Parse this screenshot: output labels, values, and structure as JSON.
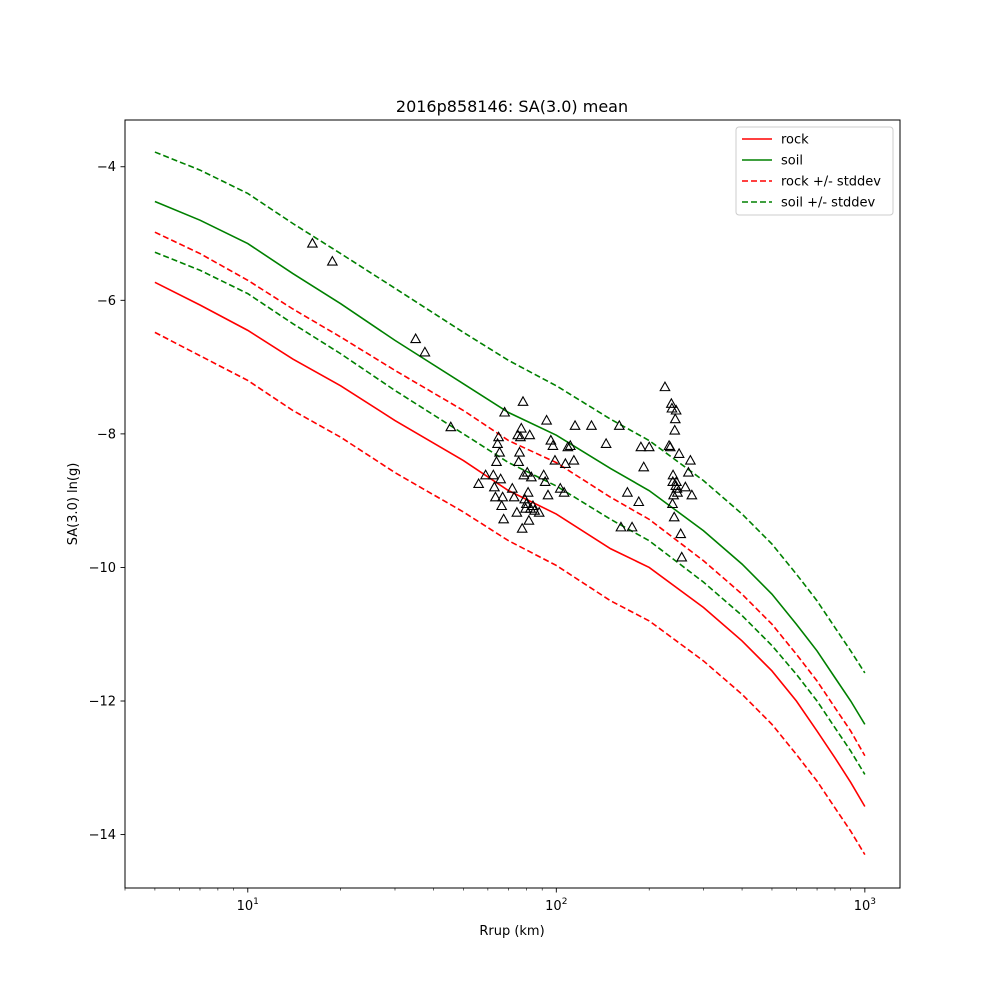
{
  "chart_data": {
    "type": "line",
    "title": "2016p858146: SA(3.0) mean",
    "xlabel": "Rrup (km)",
    "ylabel": "SA(3.0) ln(g)",
    "xscale": "log",
    "xlim": [
      4,
      1300
    ],
    "ylim": [
      -14.8,
      -3.3
    ],
    "x_ticks": [
      {
        "value": 10,
        "base": "10",
        "exp": "1"
      },
      {
        "value": 100,
        "base": "10",
        "exp": "2"
      },
      {
        "value": 1000,
        "base": "10",
        "exp": "3"
      }
    ],
    "y_ticks": [
      -4,
      -6,
      -8,
      -10,
      -12,
      -14
    ],
    "y_tick_labels": [
      "−4",
      "−6",
      "−8",
      "−10",
      "−12",
      "−14"
    ],
    "legend_position": "top-right",
    "x": [
      5,
      7,
      10,
      14,
      20,
      30,
      50,
      70,
      100,
      150,
      200,
      300,
      400,
      500,
      600,
      700,
      800,
      900,
      1000
    ],
    "series": [
      {
        "name": "rock",
        "color": "#ff0000",
        "dash": "solid",
        "values": [
          -5.73,
          -6.07,
          -6.45,
          -6.88,
          -7.28,
          -7.8,
          -8.4,
          -8.85,
          -9.2,
          -9.72,
          -10.0,
          -10.6,
          -11.1,
          -11.55,
          -12.0,
          -12.45,
          -12.85,
          -13.22,
          -13.58
        ]
      },
      {
        "name": "soil",
        "color": "#008000",
        "dash": "solid",
        "values": [
          -4.52,
          -4.8,
          -5.15,
          -5.6,
          -6.05,
          -6.6,
          -7.25,
          -7.68,
          -8.02,
          -8.52,
          -8.85,
          -9.45,
          -9.95,
          -10.4,
          -10.85,
          -11.25,
          -11.65,
          -12.0,
          -12.35
        ]
      },
      {
        "name": "rock +/- stddev",
        "color": "#ff0000",
        "dash": "dashed",
        "values": [
          -4.98,
          -5.3,
          -5.7,
          -6.13,
          -6.55,
          -7.05,
          -7.65,
          -8.1,
          -8.43,
          -8.95,
          -9.28,
          -9.9,
          -10.4,
          -10.85,
          -11.3,
          -11.7,
          -12.1,
          -12.45,
          -12.82
        ]
      },
      {
        "name": "",
        "color": "#ff0000",
        "dash": "dashed",
        "values": [
          -6.48,
          -6.83,
          -7.2,
          -7.65,
          -8.05,
          -8.58,
          -9.17,
          -9.6,
          -9.97,
          -10.5,
          -10.8,
          -11.4,
          -11.9,
          -12.35,
          -12.8,
          -13.2,
          -13.6,
          -13.95,
          -14.3
        ]
      },
      {
        "name": "soil +/- stddev",
        "color": "#008000",
        "dash": "dashed",
        "values": [
          -3.78,
          -4.05,
          -4.4,
          -4.85,
          -5.3,
          -5.82,
          -6.48,
          -6.9,
          -7.28,
          -7.78,
          -8.1,
          -8.7,
          -9.2,
          -9.65,
          -10.1,
          -10.5,
          -10.9,
          -11.25,
          -11.58
        ]
      },
      {
        "name": "",
        "color": "#008000",
        "dash": "dashed",
        "values": [
          -5.28,
          -5.55,
          -5.9,
          -6.35,
          -6.8,
          -7.35,
          -8.0,
          -8.43,
          -8.78,
          -9.28,
          -9.6,
          -10.22,
          -10.72,
          -11.17,
          -11.6,
          -12.0,
          -12.4,
          -12.75,
          -13.1
        ]
      }
    ],
    "observations": {
      "marker": "triangle-open",
      "color": "#000000",
      "points": [
        [
          16.2,
          -5.15
        ],
        [
          18.8,
          -5.42
        ],
        [
          35,
          -6.58
        ],
        [
          37.5,
          -6.78
        ],
        [
          45.5,
          -7.9
        ],
        [
          56,
          -8.75
        ],
        [
          59,
          -8.62
        ],
        [
          62.5,
          -8.62
        ],
        [
          63,
          -8.8
        ],
        [
          63.5,
          -8.95
        ],
        [
          64,
          -8.42
        ],
        [
          64.5,
          -8.15
        ],
        [
          65,
          -8.05
        ],
        [
          65.5,
          -8.28
        ],
        [
          66,
          -8.68
        ],
        [
          66.5,
          -9.08
        ],
        [
          67,
          -8.95
        ],
        [
          67.5,
          -9.28
        ],
        [
          68,
          -7.68
        ],
        [
          72,
          -8.82
        ],
        [
          73,
          -8.95
        ],
        [
          74.5,
          -9.18
        ],
        [
          75,
          -8.02
        ],
        [
          75.5,
          -8.42
        ],
        [
          76,
          -8.28
        ],
        [
          76.5,
          -8.05
        ],
        [
          77,
          -7.92
        ],
        [
          78,
          -7.52
        ],
        [
          78.5,
          -8.62
        ],
        [
          79,
          -8.98
        ],
        [
          79.5,
          -9.12
        ],
        [
          80,
          -9.05
        ],
        [
          80.5,
          -8.58
        ],
        [
          81,
          -8.88
        ],
        [
          81.5,
          -9.3
        ],
        [
          82,
          -8.02
        ],
        [
          82.5,
          -9.12
        ],
        [
          83,
          -8.65
        ],
        [
          84,
          -9.08
        ],
        [
          85,
          -9.15
        ],
        [
          77.5,
          -9.42
        ],
        [
          88,
          -9.18
        ],
        [
          91,
          -8.62
        ],
        [
          92,
          -8.72
        ],
        [
          93,
          -7.8
        ],
        [
          94,
          -8.92
        ],
        [
          96,
          -8.1
        ],
        [
          97.5,
          -8.18
        ],
        [
          99,
          -8.4
        ],
        [
          103,
          -8.82
        ],
        [
          106,
          -8.88
        ],
        [
          107,
          -8.45
        ],
        [
          109,
          -8.2
        ],
        [
          111,
          -8.18
        ],
        [
          114,
          -8.4
        ],
        [
          115,
          -7.88
        ],
        [
          130,
          -7.88
        ],
        [
          145,
          -8.15
        ],
        [
          160,
          -7.88
        ],
        [
          162,
          -9.4
        ],
        [
          170,
          -8.88
        ],
        [
          176,
          -9.4
        ],
        [
          185,
          -9.02
        ],
        [
          188,
          -8.2
        ],
        [
          192,
          -8.5
        ],
        [
          200,
          -8.2
        ],
        [
          225,
          -7.3
        ],
        [
          232,
          -8.18
        ],
        [
          234,
          -8.2
        ],
        [
          236,
          -7.55
        ],
        [
          237,
          -7.62
        ],
        [
          238,
          -9.05
        ],
        [
          239,
          -8.62
        ],
        [
          240,
          -8.92
        ],
        [
          241,
          -9.25
        ],
        [
          242,
          -7.95
        ],
        [
          243,
          -7.78
        ],
        [
          244,
          -8.78
        ],
        [
          245,
          -8.72
        ],
        [
          246,
          -8.82
        ],
        [
          247,
          -8.88
        ],
        [
          250,
          -8.3
        ],
        [
          253,
          -9.5
        ],
        [
          255,
          -9.85
        ],
        [
          262,
          -8.8
        ],
        [
          268,
          -8.58
        ],
        [
          272,
          -8.4
        ],
        [
          275,
          -8.92
        ],
        [
          244.5,
          -7.65
        ],
        [
          238.5,
          -8.72
        ]
      ]
    }
  }
}
